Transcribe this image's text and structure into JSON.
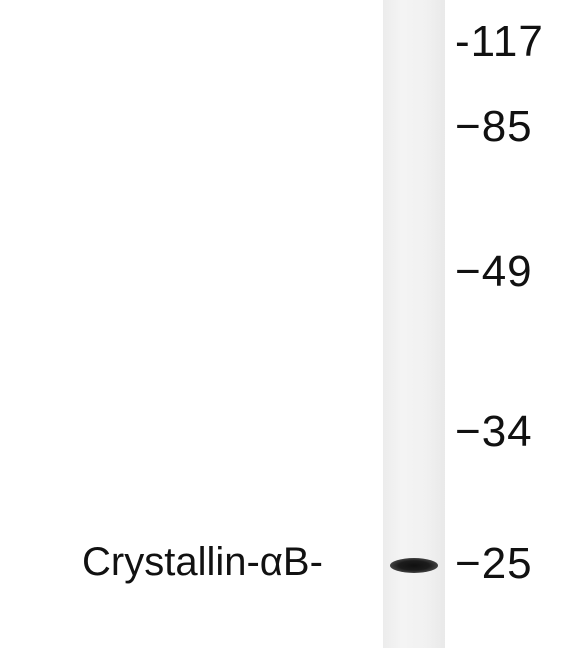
{
  "blot": {
    "band_label": "Crystallin-αB-",
    "markers": [
      "-117",
      "−85",
      "−49",
      "−34",
      "−25"
    ]
  },
  "colors": {
    "background": "#ffffff",
    "lane": "#f1f1f1",
    "band": "#151515",
    "text": "#111111"
  }
}
